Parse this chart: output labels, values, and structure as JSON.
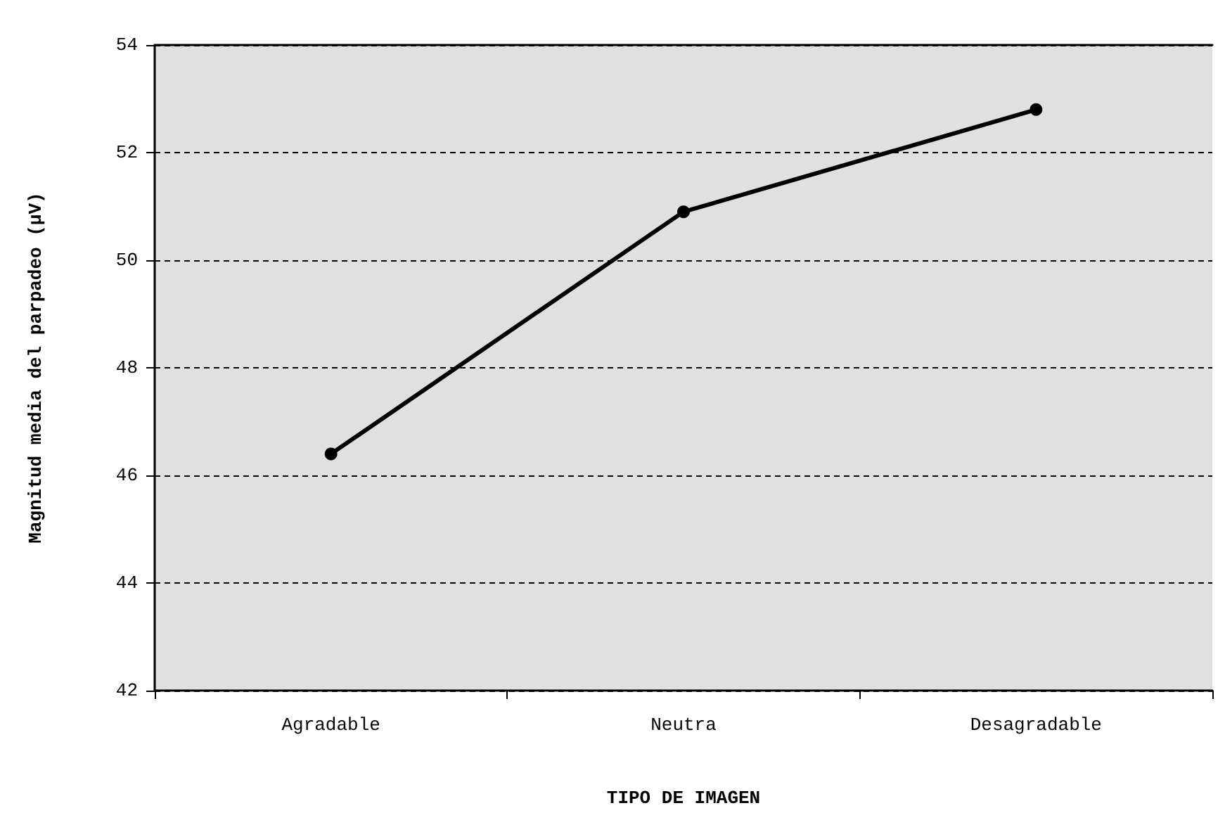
{
  "chart_data": {
    "type": "line",
    "xlabel": "TIPO DE IMAGEN",
    "ylabel": "Magnitud media del parpadeo (µV)",
    "categories": [
      "Agradable",
      "Neutra",
      "Desagradable"
    ],
    "series": [
      {
        "color": "#000000",
        "values": [
          46.4,
          50.9,
          52.8
        ]
      }
    ],
    "ylim": [
      42,
      54
    ],
    "yticks": [
      42,
      44,
      46,
      48,
      50,
      52,
      54
    ],
    "grid": "y",
    "marker": "circle",
    "line_style": "solid"
  }
}
